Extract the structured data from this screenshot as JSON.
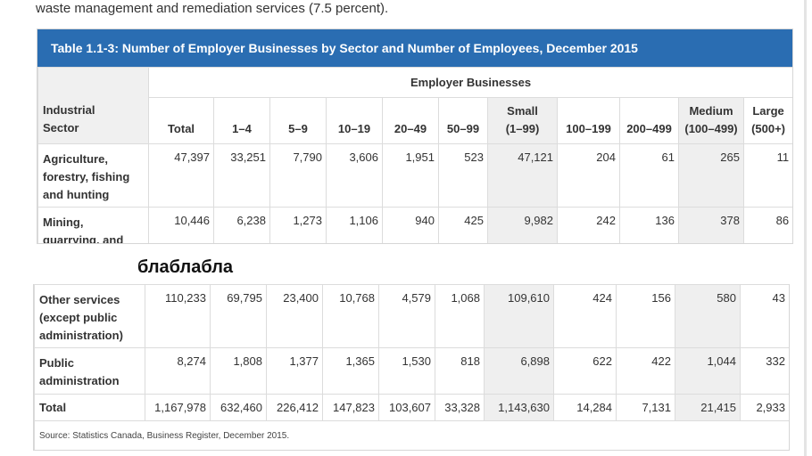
{
  "intro_text": "waste management and remediation services (7.5 percent).",
  "table": {
    "caption": "Table 1.1-3: Number of Employer Businesses by Sector and Number of Employees, December 2015",
    "sector_header_line1": "Industrial",
    "sector_header_line2": "Sector",
    "group_header": "Employer Businesses",
    "columns": [
      {
        "line1": "",
        "line2": "Total"
      },
      {
        "line1": "",
        "line2": "1–4"
      },
      {
        "line1": "",
        "line2": "5–9"
      },
      {
        "line1": "",
        "line2": "10–19"
      },
      {
        "line1": "",
        "line2": "20–49"
      },
      {
        "line1": "",
        "line2": "50–99"
      },
      {
        "line1": "Small",
        "line2": "(1–99)"
      },
      {
        "line1": "",
        "line2": "100–199"
      },
      {
        "line1": "",
        "line2": "200–499"
      },
      {
        "line1": "Medium",
        "line2": "(100–499)"
      },
      {
        "line1": "Large",
        "line2": "(500+)"
      }
    ],
    "rows_top": [
      {
        "sector_lines": [
          "Agriculture,",
          "forestry, fishing",
          "and hunting"
        ],
        "values": [
          "47,397",
          "33,251",
          "7,790",
          "3,606",
          "1,951",
          "523",
          "47,121",
          "204",
          "61",
          "265",
          "11"
        ]
      },
      {
        "sector_lines": [
          "Mining,",
          "quarrying, and",
          ""
        ],
        "values": [
          "10,446",
          "6,238",
          "1,273",
          "1,106",
          "940",
          "425",
          "9,982",
          "242",
          "136",
          "378",
          "86"
        ]
      }
    ],
    "rows_bottom": [
      {
        "sector_lines": [
          "Other services",
          "(except public",
          "administration)"
        ],
        "values": [
          "110,233",
          "69,795",
          "23,400",
          "10,768",
          "4,579",
          "1,068",
          "109,610",
          "424",
          "156",
          "580",
          "43"
        ]
      },
      {
        "sector_lines": [
          "Public",
          "administration"
        ],
        "values": [
          "8,274",
          "1,808",
          "1,377",
          "1,365",
          "1,530",
          "818",
          "6,898",
          "622",
          "422",
          "1,044",
          "332"
        ]
      }
    ],
    "total_row": {
      "label": "Total",
      "values": [
        "1,167,978",
        "632,460",
        "226,412",
        "147,823",
        "103,607",
        "33,328",
        "1,143,630",
        "14,284",
        "7,131",
        "21,415",
        "2,933"
      ]
    },
    "source": "Source: Statistics Canada, Business Register, December 2015."
  },
  "overlay_text": "блаблабла"
}
